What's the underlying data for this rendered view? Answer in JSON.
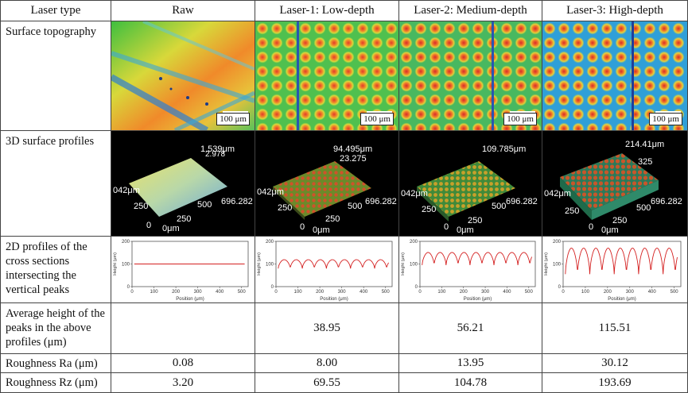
{
  "table": {
    "header": {
      "col0": "Laser type",
      "col1": "Raw",
      "col2": "Laser-1: Low-depth",
      "col3": "Laser-2: Medium-depth",
      "col4": "Laser-3: High-depth"
    },
    "row_labels": {
      "topography": "Surface topography",
      "profiles3d": "3D surface profiles",
      "profiles2d": "2D profiles of the cross sections intersecting the vertical peaks",
      "avg_height": "Average height of the peaks in the above profiles (μm)",
      "ra": "Roughness Ra (μm)",
      "rz": "Roughness Rz (μm)"
    },
    "scale_bar": "100 μm",
    "avg_height": [
      "",
      "38.95",
      "56.21",
      "115.51"
    ],
    "ra": [
      "0.08",
      "8.00",
      "13.95",
      "30.12"
    ],
    "rz": [
      "3.20",
      "69.55",
      "104.78",
      "193.69"
    ],
    "profiles3d": [
      {
        "z_top": "1.539μm",
        "z_sub": "2.978",
        "y_far": "042μm",
        "y_mid": "250",
        "x_far": "696.282",
        "x_mid": "500",
        "x_near": "250",
        "zero": "0",
        "zero_um": "0μm"
      },
      {
        "z_top": "94.495μm",
        "z_sub": "23.275",
        "y_far": "042μm",
        "y_mid": "250",
        "x_far": "696.282",
        "x_mid": "500",
        "x_near": "250",
        "zero": "0",
        "zero_um": "0μm"
      },
      {
        "z_top": "109.785μm",
        "z_sub": "",
        "y_far": "042μm",
        "y_mid": "250",
        "x_far": "696.282",
        "x_mid": "500",
        "x_near": "250",
        "zero": "0",
        "zero_um": "0μm"
      },
      {
        "z_top": "214.41μm",
        "z_sub": "325",
        "y_far": "042μm",
        "y_mid": "250",
        "x_far": "696.282",
        "x_mid": "500",
        "x_near": "250",
        "zero": "0",
        "zero_um": "0μm"
      }
    ],
    "profile2d_axes": {
      "ylabel": "Height (μm)",
      "xlabel": "Position (μm)",
      "xticks": [
        "0",
        "100",
        "200",
        "300",
        "400",
        "500"
      ],
      "yticks": [
        "0",
        "100",
        "200"
      ]
    }
  },
  "chart_data": [
    {
      "type": "line",
      "name": "Raw",
      "xlabel": "Position (μm)",
      "ylabel": "Height (μm)",
      "xlim": [
        0,
        530
      ],
      "ylim": [
        0,
        200
      ],
      "amplitude": 0,
      "baseline": 100,
      "period_um": 55
    },
    {
      "type": "line",
      "name": "Laser-1: Low-depth",
      "xlabel": "Position (μm)",
      "ylabel": "Height (μm)",
      "xlim": [
        0,
        530
      ],
      "ylim": [
        0,
        200
      ],
      "amplitude": 39,
      "baseline": 80,
      "period_um": 55
    },
    {
      "type": "line",
      "name": "Laser-2: Medium-depth",
      "xlabel": "Position (μm)",
      "ylabel": "Height (μm)",
      "xlim": [
        0,
        530
      ],
      "ylim": [
        0,
        200
      ],
      "amplitude": 56,
      "baseline": 95,
      "period_um": 55
    },
    {
      "type": "line",
      "name": "Laser-3: High-depth",
      "xlabel": "Position (μm)",
      "ylabel": "Height (μm)",
      "xlim": [
        0,
        530
      ],
      "ylim": [
        0,
        200
      ],
      "amplitude": 115,
      "baseline": 55,
      "period_um": 55
    }
  ]
}
